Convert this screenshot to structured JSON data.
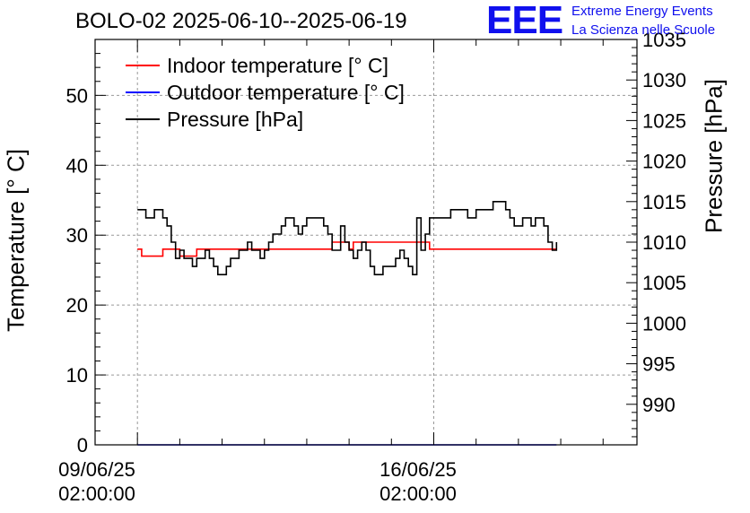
{
  "header": {
    "title": "BOLO-02 2025-06-10--2025-06-19",
    "logo": "EEE",
    "logo_line1": "Extreme Energy Events",
    "logo_line2": "La Scienza nelle Scuole"
  },
  "colors": {
    "indoor": "#ff0000",
    "outdoor": "#0000ff",
    "pressure": "#000000"
  },
  "chart_data": {
    "type": "line",
    "ylabel": "Temperature [° C]",
    "y2label": "Pressure [hPa]",
    "xlabel": "",
    "ylim": [
      0,
      58
    ],
    "y2lim": [
      985,
      1035
    ],
    "x_ticks": [
      {
        "date": "09/06/25",
        "time": "02:00:00",
        "day": 0
      },
      {
        "date": "16/06/25",
        "time": "02:00:00",
        "day": 7
      }
    ],
    "x_range_days": [
      -1.0,
      11.8
    ],
    "y_ticks": [
      0,
      10,
      20,
      30,
      40,
      50
    ],
    "y2_ticks": [
      990,
      995,
      1000,
      1005,
      1010,
      1015,
      1020,
      1025,
      1030,
      1035
    ],
    "grid": true,
    "legend_position": "top-left",
    "series": [
      {
        "name": "Indoor temperature [° C]",
        "axis": "left",
        "points": [
          [
            0.0,
            28
          ],
          [
            0.1,
            28
          ],
          [
            0.1,
            27
          ],
          [
            0.6,
            27
          ],
          [
            0.6,
            28
          ],
          [
            1.0,
            28
          ],
          [
            1.0,
            27
          ],
          [
            1.4,
            27
          ],
          [
            1.4,
            28
          ],
          [
            4.6,
            28
          ],
          [
            4.6,
            29
          ],
          [
            5.0,
            29
          ],
          [
            5.0,
            28
          ],
          [
            5.1,
            28
          ],
          [
            5.1,
            29
          ],
          [
            6.9,
            29
          ],
          [
            6.9,
            28
          ],
          [
            9.9,
            28
          ]
        ]
      },
      {
        "name": "Outdoor temperature [° C]",
        "axis": "left",
        "points": [
          [
            0.0,
            0
          ],
          [
            9.9,
            0
          ]
        ]
      },
      {
        "name": "Pressure [hPa]",
        "axis": "right",
        "points": [
          [
            0.0,
            1014
          ],
          [
            0.2,
            1013
          ],
          [
            0.3,
            1013
          ],
          [
            0.4,
            1014
          ],
          [
            0.5,
            1014
          ],
          [
            0.6,
            1013
          ],
          [
            0.7,
            1012
          ],
          [
            0.8,
            1010
          ],
          [
            0.9,
            1008
          ],
          [
            1.0,
            1009
          ],
          [
            1.1,
            1008
          ],
          [
            1.2,
            1008
          ],
          [
            1.3,
            1007
          ],
          [
            1.4,
            1008
          ],
          [
            1.5,
            1008
          ],
          [
            1.6,
            1009
          ],
          [
            1.7,
            1008
          ],
          [
            1.8,
            1007
          ],
          [
            1.9,
            1006
          ],
          [
            2.0,
            1006
          ],
          [
            2.1,
            1007
          ],
          [
            2.2,
            1008
          ],
          [
            2.3,
            1008
          ],
          [
            2.4,
            1009
          ],
          [
            2.5,
            1009
          ],
          [
            2.6,
            1010
          ],
          [
            2.7,
            1009
          ],
          [
            2.8,
            1009
          ],
          [
            2.9,
            1008
          ],
          [
            3.0,
            1009
          ],
          [
            3.1,
            1010
          ],
          [
            3.2,
            1011
          ],
          [
            3.3,
            1011
          ],
          [
            3.4,
            1012
          ],
          [
            3.5,
            1013
          ],
          [
            3.6,
            1013
          ],
          [
            3.7,
            1012
          ],
          [
            3.8,
            1011
          ],
          [
            3.9,
            1012
          ],
          [
            4.0,
            1013
          ],
          [
            4.1,
            1013
          ],
          [
            4.2,
            1013
          ],
          [
            4.3,
            1013
          ],
          [
            4.4,
            1012
          ],
          [
            4.5,
            1011
          ],
          [
            4.6,
            1009
          ],
          [
            4.7,
            1009
          ],
          [
            4.8,
            1012
          ],
          [
            4.9,
            1010
          ],
          [
            5.0,
            1009
          ],
          [
            5.1,
            1008
          ],
          [
            5.2,
            1009
          ],
          [
            5.3,
            1010
          ],
          [
            5.4,
            1009
          ],
          [
            5.5,
            1007
          ],
          [
            5.6,
            1006
          ],
          [
            5.7,
            1006
          ],
          [
            5.8,
            1007
          ],
          [
            5.9,
            1007
          ],
          [
            6.0,
            1007
          ],
          [
            6.1,
            1008
          ],
          [
            6.2,
            1009
          ],
          [
            6.3,
            1008
          ],
          [
            6.4,
            1007
          ],
          [
            6.5,
            1006
          ],
          [
            6.6,
            1013
          ],
          [
            6.7,
            1009
          ],
          [
            6.8,
            1011
          ],
          [
            6.9,
            1013
          ],
          [
            7.0,
            1013
          ],
          [
            7.2,
            1013
          ],
          [
            7.4,
            1014
          ],
          [
            7.6,
            1014
          ],
          [
            7.8,
            1013
          ],
          [
            8.0,
            1014
          ],
          [
            8.2,
            1014
          ],
          [
            8.4,
            1015
          ],
          [
            8.6,
            1015
          ],
          [
            8.7,
            1014
          ],
          [
            8.8,
            1013
          ],
          [
            8.9,
            1012
          ],
          [
            9.0,
            1012
          ],
          [
            9.1,
            1013
          ],
          [
            9.2,
            1013
          ],
          [
            9.3,
            1012
          ],
          [
            9.4,
            1013
          ],
          [
            9.5,
            1013
          ],
          [
            9.6,
            1012
          ],
          [
            9.7,
            1010
          ],
          [
            9.8,
            1009
          ],
          [
            9.9,
            1010
          ]
        ]
      }
    ]
  }
}
